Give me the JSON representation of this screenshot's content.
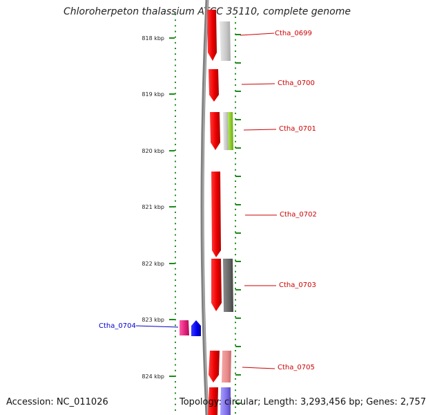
{
  "title": "Chloroherpeton thalassium ATCC 35110, complete genome",
  "footer": {
    "accession": "Accession: NC_011026",
    "topology": "Topology: circular; Length: 3,293,456 bp; Genes: 2,757"
  },
  "scale": {
    "ticks": [
      "818 kbp",
      "819 kbp",
      "820 kbp",
      "821 kbp",
      "822 kbp",
      "823 kbp",
      "824 kbp"
    ]
  },
  "genes": [
    {
      "name": "Ctha_0699",
      "strand": "forward",
      "color": "#cc0000"
    },
    {
      "name": "Ctha_0700",
      "strand": "forward",
      "color": "#cc0000"
    },
    {
      "name": "Ctha_0701",
      "strand": "forward",
      "color": "#cc0000"
    },
    {
      "name": "Ctha_0702",
      "strand": "forward",
      "color": "#cc0000"
    },
    {
      "name": "Ctha_0703",
      "strand": "forward",
      "color": "#cc0000"
    },
    {
      "name": "Ctha_0704",
      "strand": "reverse",
      "color": "#0000cc"
    },
    {
      "name": "Ctha_0705",
      "strand": "forward",
      "color": "#cc0000"
    }
  ]
}
